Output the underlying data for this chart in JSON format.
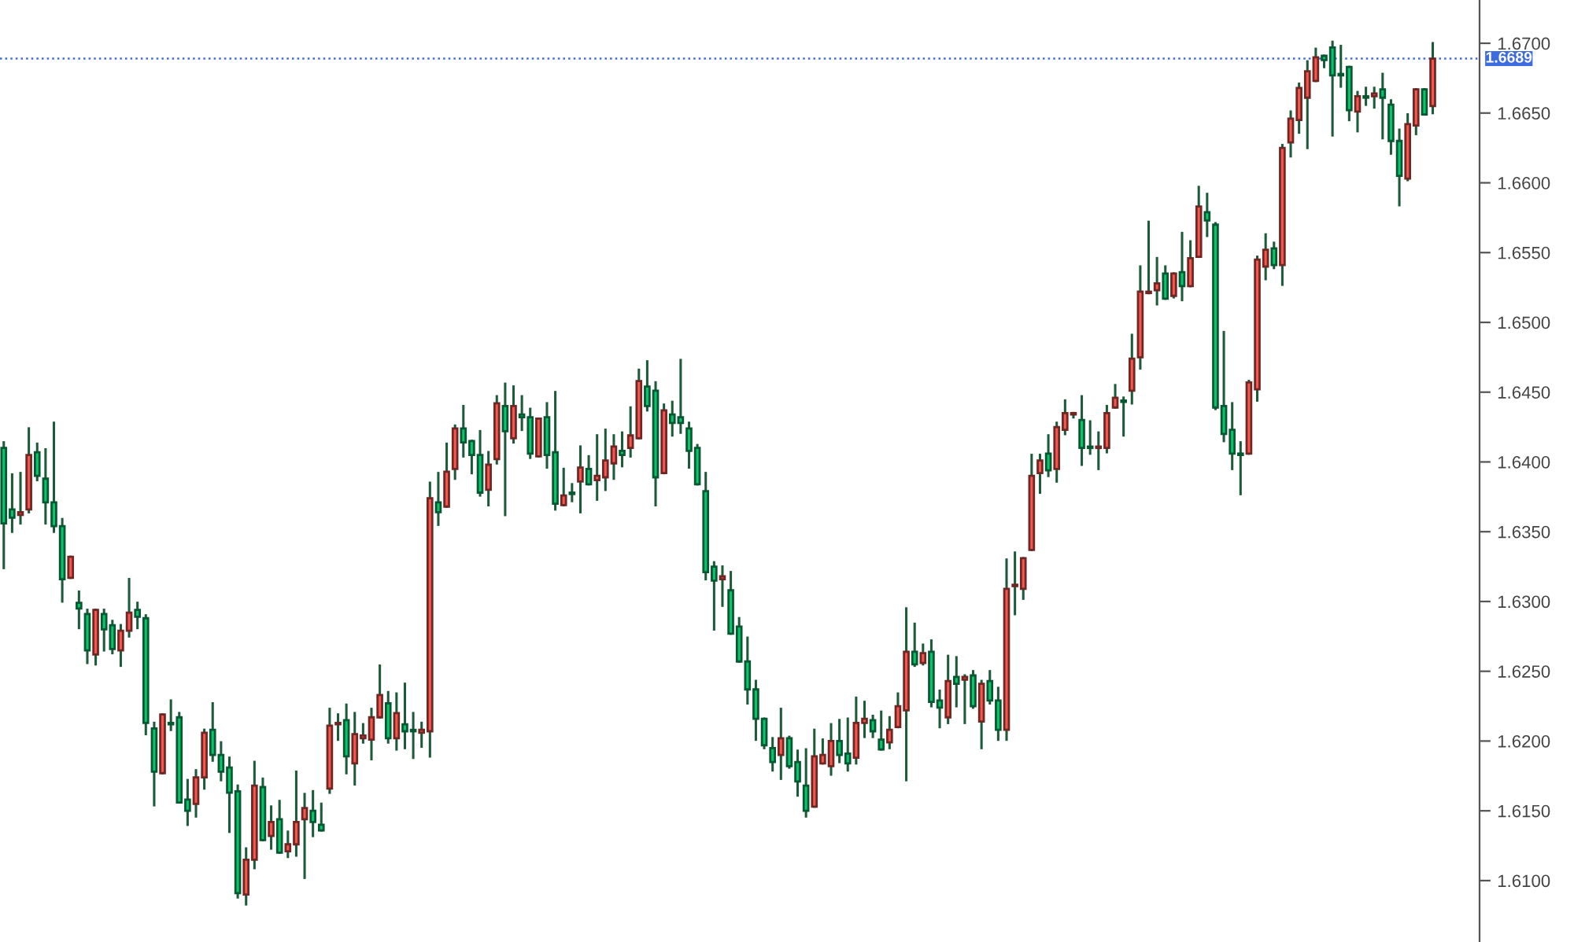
{
  "chart_data": {
    "type": "candlestick",
    "categories": [
      null,
      null,
      null,
      null,
      null,
      null,
      null,
      null,
      null,
      null,
      null,
      null,
      null,
      null,
      null,
      null,
      null,
      null,
      null,
      null,
      null,
      null,
      null,
      null,
      null,
      null,
      null,
      null,
      null,
      null,
      null,
      null,
      null,
      null,
      null,
      null,
      null,
      null,
      null,
      null,
      null,
      null,
      null,
      null,
      null,
      null,
      null,
      null,
      null,
      null,
      null,
      null,
      null,
      null,
      null,
      null,
      null,
      null,
      null,
      null,
      null,
      null,
      null,
      null,
      null,
      null,
      null,
      null,
      null,
      null,
      null,
      null,
      null,
      null,
      null,
      null,
      null,
      null,
      null,
      null,
      null,
      null,
      null,
      null,
      null,
      null,
      null,
      null,
      null,
      null,
      null,
      null,
      null,
      null,
      null,
      null,
      null,
      null,
      null,
      null,
      null,
      null,
      null,
      null,
      null,
      null,
      null,
      null,
      null,
      null,
      null,
      null,
      null,
      null,
      null,
      null,
      null,
      null,
      null,
      null,
      null,
      null,
      null,
      null,
      null,
      null,
      null,
      null,
      null,
      null,
      null,
      null,
      null,
      null,
      null,
      null,
      null,
      null,
      null,
      null,
      null,
      null,
      null,
      null,
      null,
      null,
      null,
      null,
      null,
      null,
      null,
      null,
      null,
      null,
      null,
      null,
      null,
      null,
      null,
      null,
      null,
      null,
      null,
      null,
      null,
      null,
      null,
      null,
      null,
      null,
      null,
      null
    ],
    "ohlc": [
      [
        1.641,
        1.6414,
        1.6324,
        1.6356
      ],
      [
        1.6366,
        1.6391,
        1.635,
        1.636
      ],
      [
        1.6362,
        1.6392,
        1.6356,
        1.6364
      ],
      [
        1.6366,
        1.6424,
        1.6364,
        1.6405
      ],
      [
        1.6407,
        1.6413,
        1.6387,
        1.639
      ],
      [
        1.6388,
        1.6409,
        1.6356,
        1.6371
      ],
      [
        1.6371,
        1.6428,
        1.635,
        1.6354
      ],
      [
        1.6354,
        1.6359,
        1.63,
        1.6316
      ],
      [
        1.6317,
        1.6332,
        1.6317,
        1.6332
      ],
      [
        1.6299,
        1.6307,
        1.6281,
        1.6295
      ],
      [
        1.6291,
        1.6294,
        1.6256,
        1.6265
      ],
      [
        1.6262,
        1.6294,
        1.6255,
        1.6294
      ],
      [
        1.6291,
        1.6294,
        1.6265,
        1.628
      ],
      [
        1.6283,
        1.6286,
        1.6263,
        1.6266
      ],
      [
        1.6265,
        1.6283,
        1.6254,
        1.6279
      ],
      [
        1.6279,
        1.6316,
        1.6275,
        1.6292
      ],
      [
        1.6294,
        1.6299,
        1.6281,
        1.6289
      ],
      [
        1.6288,
        1.629,
        1.6205,
        1.6213
      ],
      [
        1.6209,
        1.6213,
        1.6154,
        1.6178
      ],
      [
        1.6177,
        1.6219,
        1.6177,
        1.6219
      ],
      [
        1.6213,
        1.6229,
        1.6208,
        1.6212
      ],
      [
        1.6217,
        1.622,
        1.6156,
        1.6156
      ],
      [
        1.6158,
        1.6172,
        1.614,
        1.615
      ],
      [
        1.6155,
        1.6179,
        1.6146,
        1.6174
      ],
      [
        1.6174,
        1.6208,
        1.6166,
        1.6206
      ],
      [
        1.6208,
        1.6227,
        1.6186,
        1.619
      ],
      [
        1.619,
        1.6199,
        1.6172,
        1.6178
      ],
      [
        1.6181,
        1.6188,
        1.6135,
        1.6163
      ],
      [
        1.6164,
        1.6168,
        1.6088,
        1.6091
      ],
      [
        1.609,
        1.6123,
        1.6083,
        1.6115
      ],
      [
        1.6115,
        1.6185,
        1.6109,
        1.6168
      ],
      [
        1.6167,
        1.6173,
        1.6129,
        1.6129
      ],
      [
        1.6132,
        1.6153,
        1.6123,
        1.6142
      ],
      [
        1.6144,
        1.6157,
        1.612,
        1.612
      ],
      [
        1.6121,
        1.6135,
        1.6117,
        1.6126
      ],
      [
        1.6126,
        1.6178,
        1.6118,
        1.6142
      ],
      [
        1.6144,
        1.6162,
        1.6102,
        1.6152
      ],
      [
        1.615,
        1.6164,
        1.6132,
        1.6142
      ],
      [
        1.614,
        1.6155,
        1.6136,
        1.6136
      ],
      [
        1.6166,
        1.6223,
        1.6163,
        1.6211
      ],
      [
        1.6212,
        1.6219,
        1.6201,
        1.6213
      ],
      [
        1.6215,
        1.6226,
        1.6177,
        1.6189
      ],
      [
        1.6184,
        1.622,
        1.6169,
        1.6205
      ],
      [
        1.6202,
        1.6212,
        1.6199,
        1.6204
      ],
      [
        1.6201,
        1.6223,
        1.6187,
        1.6217
      ],
      [
        1.6217,
        1.6254,
        1.6217,
        1.6233
      ],
      [
        1.6227,
        1.6235,
        1.6199,
        1.6202
      ],
      [
        1.6202,
        1.6234,
        1.6194,
        1.622
      ],
      [
        1.6212,
        1.6241,
        1.6195,
        1.6207
      ],
      [
        1.6208,
        1.622,
        1.6188,
        1.6207
      ],
      [
        1.6206,
        1.6213,
        1.6196,
        1.6208
      ],
      [
        1.6207,
        1.6385,
        1.6189,
        1.6374
      ],
      [
        1.6371,
        1.6392,
        1.6355,
        1.6364
      ],
      [
        1.6368,
        1.6413,
        1.6368,
        1.6393
      ],
      [
        1.6395,
        1.6426,
        1.6388,
        1.6424
      ],
      [
        1.6424,
        1.644,
        1.6404,
        1.6414
      ],
      [
        1.6415,
        1.6415,
        1.6392,
        1.6405
      ],
      [
        1.6405,
        1.6422,
        1.6376,
        1.6378
      ],
      [
        1.638,
        1.6407,
        1.6369,
        1.6398
      ],
      [
        1.6402,
        1.6447,
        1.6399,
        1.6442
      ],
      [
        1.644,
        1.6456,
        1.6362,
        1.6422
      ],
      [
        1.6417,
        1.6454,
        1.6414,
        1.644
      ],
      [
        1.6434,
        1.6447,
        1.6423,
        1.6432
      ],
      [
        1.6432,
        1.6438,
        1.6403,
        1.6406
      ],
      [
        1.6404,
        1.6431,
        1.6404,
        1.6431
      ],
      [
        1.6432,
        1.6442,
        1.6396,
        1.6405
      ],
      [
        1.6407,
        1.645,
        1.6366,
        1.637
      ],
      [
        1.6369,
        1.6395,
        1.6369,
        1.6376
      ],
      [
        1.6378,
        1.6384,
        1.6372,
        1.6377
      ],
      [
        1.6386,
        1.6411,
        1.6364,
        1.6396
      ],
      [
        1.6395,
        1.6404,
        1.6384,
        1.6384
      ],
      [
        1.6387,
        1.6419,
        1.6373,
        1.639
      ],
      [
        1.6389,
        1.6423,
        1.638,
        1.6401
      ],
      [
        1.6399,
        1.6419,
        1.6388,
        1.6411
      ],
      [
        1.6408,
        1.6421,
        1.6397,
        1.6405
      ],
      [
        1.641,
        1.6439,
        1.6404,
        1.6419
      ],
      [
        1.6417,
        1.6466,
        1.6417,
        1.6458
      ],
      [
        1.6454,
        1.6472,
        1.6437,
        1.644
      ],
      [
        1.6451,
        1.6457,
        1.6369,
        1.6389
      ],
      [
        1.6392,
        1.6441,
        1.6392,
        1.6437
      ],
      [
        1.6434,
        1.6443,
        1.6419,
        1.6428
      ],
      [
        1.6432,
        1.6473,
        1.6421,
        1.6428
      ],
      [
        1.6424,
        1.6428,
        1.6396,
        1.6408
      ],
      [
        1.641,
        1.6412,
        1.6384,
        1.6384
      ],
      [
        1.6379,
        1.6392,
        1.6316,
        1.6321
      ],
      [
        1.6325,
        1.6328,
        1.628,
        1.6315
      ],
      [
        1.6316,
        1.6325,
        1.6297,
        1.6318
      ],
      [
        1.6308,
        1.6321,
        1.6277,
        1.6277
      ],
      [
        1.6282,
        1.6288,
        1.6257,
        1.6257
      ],
      [
        1.6257,
        1.6274,
        1.6227,
        1.6237
      ],
      [
        1.6237,
        1.6243,
        1.6201,
        1.6216
      ],
      [
        1.6216,
        1.6216,
        1.6195,
        1.6197
      ],
      [
        1.6195,
        1.6202,
        1.6179,
        1.6185
      ],
      [
        1.619,
        1.6223,
        1.6173,
        1.6202
      ],
      [
        1.6202,
        1.6203,
        1.6181,
        1.6182
      ],
      [
        1.6185,
        1.6193,
        1.6161,
        1.6171
      ],
      [
        1.6168,
        1.6194,
        1.6146,
        1.615
      ],
      [
        1.6153,
        1.6208,
        1.6153,
        1.6189
      ],
      [
        1.6184,
        1.6201,
        1.6184,
        1.619
      ],
      [
        1.6182,
        1.6212,
        1.6176,
        1.62
      ],
      [
        1.62,
        1.6215,
        1.6185,
        1.619
      ],
      [
        1.6191,
        1.6216,
        1.6179,
        1.6184
      ],
      [
        1.6188,
        1.6231,
        1.6184,
        1.6213
      ],
      [
        1.6213,
        1.6228,
        1.6203,
        1.6216
      ],
      [
        1.6215,
        1.6218,
        1.6203,
        1.6207
      ],
      [
        1.6201,
        1.6221,
        1.6194,
        1.6194
      ],
      [
        1.6199,
        1.6217,
        1.6195,
        1.6208
      ],
      [
        1.621,
        1.6234,
        1.621,
        1.6225
      ],
      [
        1.6222,
        1.6295,
        1.6172,
        1.6264
      ],
      [
        1.6264,
        1.6284,
        1.6254,
        1.6255
      ],
      [
        1.6256,
        1.6269,
        1.6255,
        1.6263
      ],
      [
        1.6264,
        1.6272,
        1.6225,
        1.6228
      ],
      [
        1.6229,
        1.6236,
        1.621,
        1.6224
      ],
      [
        1.6217,
        1.6261,
        1.6213,
        1.6243
      ],
      [
        1.6246,
        1.626,
        1.6225,
        1.6241
      ],
      [
        1.6244,
        1.6247,
        1.6213,
        1.6246
      ],
      [
        1.6247,
        1.625,
        1.6224,
        1.6225
      ],
      [
        1.6214,
        1.6243,
        1.6195,
        1.6241
      ],
      [
        1.6243,
        1.625,
        1.6227,
        1.6229
      ],
      [
        1.6229,
        1.6238,
        1.6201,
        1.6208
      ],
      [
        1.6208,
        1.633,
        1.6201,
        1.6309
      ],
      [
        1.6311,
        1.6335,
        1.6291,
        1.6312
      ],
      [
        1.6309,
        1.6331,
        1.6302,
        1.6331
      ],
      [
        1.6337,
        1.6405,
        1.6337,
        1.639
      ],
      [
        1.6392,
        1.6405,
        1.6378,
        1.6401
      ],
      [
        1.6406,
        1.6419,
        1.639,
        1.6394
      ],
      [
        1.6395,
        1.6428,
        1.6386,
        1.6425
      ],
      [
        1.6423,
        1.6444,
        1.642,
        1.6435
      ],
      [
        1.6434,
        1.6435,
        1.6432,
        1.6435
      ],
      [
        1.643,
        1.6447,
        1.6398,
        1.641
      ],
      [
        1.6411,
        1.6429,
        1.6406,
        1.641
      ],
      [
        1.641,
        1.6421,
        1.6395,
        1.6411
      ],
      [
        1.641,
        1.644,
        1.6407,
        1.6435
      ],
      [
        1.6439,
        1.6455,
        1.6439,
        1.6446
      ],
      [
        1.6444,
        1.6446,
        1.6419,
        1.6443
      ],
      [
        1.6451,
        1.6491,
        1.6442,
        1.6474
      ],
      [
        1.6475,
        1.654,
        1.6467,
        1.6522
      ],
      [
        1.6521,
        1.6572,
        1.6521,
        1.6522
      ],
      [
        1.6523,
        1.6546,
        1.6513,
        1.6528
      ],
      [
        1.6535,
        1.654,
        1.6517,
        1.6517
      ],
      [
        1.6519,
        1.6535,
        1.6518,
        1.6535
      ],
      [
        1.6536,
        1.6564,
        1.6516,
        1.6526
      ],
      [
        1.6526,
        1.6558,
        1.6526,
        1.6546
      ],
      [
        1.6547,
        1.6597,
        1.6547,
        1.6583
      ],
      [
        1.6579,
        1.6592,
        1.6562,
        1.6573
      ],
      [
        1.657,
        1.6571,
        1.6438,
        1.6439
      ],
      [
        1.644,
        1.6493,
        1.6415,
        1.642
      ],
      [
        1.6423,
        1.6442,
        1.6395,
        1.6406
      ],
      [
        1.6406,
        1.6414,
        1.6377,
        1.6405
      ],
      [
        1.6406,
        1.6458,
        1.6406,
        1.6457
      ],
      [
        1.6452,
        1.6547,
        1.6444,
        1.6545
      ],
      [
        1.654,
        1.6563,
        1.6531,
        1.6552
      ],
      [
        1.6553,
        1.6557,
        1.6539,
        1.6541
      ],
      [
        1.6541,
        1.6627,
        1.6527,
        1.6625
      ],
      [
        1.6629,
        1.6651,
        1.6619,
        1.6646
      ],
      [
        1.6645,
        1.6671,
        1.6636,
        1.6668
      ],
      [
        1.6661,
        1.6687,
        1.6625,
        1.668
      ],
      [
        1.6673,
        1.6696,
        1.6673,
        1.669
      ],
      [
        1.6691,
        1.6691,
        1.6683,
        1.6688
      ],
      [
        1.6697,
        1.6701,
        1.6634,
        1.6677
      ],
      [
        1.6678,
        1.6698,
        1.6669,
        1.6677
      ],
      [
        1.6683,
        1.6683,
        1.6645,
        1.6652
      ],
      [
        1.6651,
        1.6665,
        1.6637,
        1.6662
      ],
      [
        1.6662,
        1.6668,
        1.6656,
        1.6661
      ],
      [
        1.6662,
        1.6668,
        1.6654,
        1.6664
      ],
      [
        1.6667,
        1.6678,
        1.6632,
        1.6661
      ],
      [
        1.6656,
        1.6659,
        1.6621,
        1.663
      ],
      [
        1.663,
        1.6638,
        1.6584,
        1.6605
      ],
      [
        1.6603,
        1.6649,
        1.6602,
        1.6642
      ],
      [
        1.6641,
        1.6667,
        1.6635,
        1.6667
      ],
      [
        1.6667,
        1.6667,
        1.6649,
        1.6649
      ],
      [
        1.6655,
        1.67,
        1.665,
        1.6689
      ]
    ],
    "colors": [
      "#0bc46c",
      "#0bc46c",
      "#f6574f",
      "#f6574f",
      "#0bc46c",
      "#0bc46c",
      "#0bc46c",
      "#0bc46c",
      "#f6574f",
      "#0bc46c",
      "#0bc46c",
      "#f6574f",
      "#0bc46c",
      "#0bc46c",
      "#f6574f",
      "#f6574f",
      "#0bc46c",
      "#0bc46c",
      "#0bc46c",
      "#f6574f",
      "#0bc46c",
      "#0bc46c",
      "#0bc46c",
      "#f6574f",
      "#f6574f",
      "#0bc46c",
      "#0bc46c",
      "#0bc46c",
      "#0bc46c",
      "#f6574f",
      "#f6574f",
      "#0bc46c",
      "#f6574f",
      "#0bc46c",
      "#f6574f",
      "#f6574f",
      "#f6574f",
      "#0bc46c",
      "#0bc46c",
      "#f6574f",
      "#f6574f",
      "#0bc46c",
      "#f6574f",
      "#f6574f",
      "#f6574f",
      "#f6574f",
      "#0bc46c",
      "#f6574f",
      "#0bc46c",
      "#0bc46c",
      "#f6574f",
      "#f6574f",
      "#0bc46c",
      "#f6574f",
      "#f6574f",
      "#0bc46c",
      "#0bc46c",
      "#0bc46c",
      "#f6574f",
      "#f6574f",
      "#0bc46c",
      "#f6574f",
      "#0bc46c",
      "#0bc46c",
      "#f6574f",
      "#0bc46c",
      "#0bc46c",
      "#f6574f",
      "#0bc46c",
      "#f6574f",
      "#0bc46c",
      "#f6574f",
      "#f6574f",
      "#f6574f",
      "#0bc46c",
      "#f6574f",
      "#f6574f",
      "#0bc46c",
      "#0bc46c",
      "#f6574f",
      "#0bc46c",
      "#0bc46c",
      "#0bc46c",
      "#0bc46c",
      "#0bc46c",
      "#0bc46c",
      "#f6574f",
      "#0bc46c",
      "#0bc46c",
      "#0bc46c",
      "#0bc46c",
      "#0bc46c",
      "#0bc46c",
      "#f6574f",
      "#0bc46c",
      "#0bc46c",
      "#0bc46c",
      "#f6574f",
      "#f6574f",
      "#f6574f",
      "#0bc46c",
      "#0bc46c",
      "#f6574f",
      "#f6574f",
      "#0bc46c",
      "#0bc46c",
      "#f6574f",
      "#f6574f",
      "#f6574f",
      "#0bc46c",
      "#f6574f",
      "#0bc46c",
      "#0bc46c",
      "#f6574f",
      "#0bc46c",
      "#f6574f",
      "#0bc46c",
      "#f6574f",
      "#0bc46c",
      "#0bc46c",
      "#f6574f",
      "#f6574f",
      "#f6574f",
      "#f6574f",
      "#f6574f",
      "#0bc46c",
      "#f6574f",
      "#f6574f",
      "#f6574f",
      "#0bc46c",
      "#0bc46c",
      "#f6574f",
      "#f6574f",
      "#f6574f",
      "#0bc46c",
      "#f6574f",
      "#f6574f",
      "#f6574f",
      "#f6574f",
      "#0bc46c",
      "#f6574f",
      "#0bc46c",
      "#f6574f",
      "#f6574f",
      "#0bc46c",
      "#0bc46c",
      "#0bc46c",
      "#0bc46c",
      "#0bc46c",
      "#f6574f",
      "#f6574f",
      "#f6574f",
      "#0bc46c",
      "#f6574f",
      "#f6574f",
      "#f6574f",
      "#f6574f",
      "#f6574f",
      "#0bc46c",
      "#0bc46c",
      "#0bc46c",
      "#0bc46c",
      "#f6574f",
      "#0bc46c",
      "#f6574f",
      "#0bc46c",
      "#0bc46c",
      "#0bc46c",
      "#f6574f",
      "#f6574f",
      "#0bc46c",
      "#f6574f"
    ],
    "ylim": [
      1.6056,
      1.6731
    ],
    "yticks": [
      {
        "value": 1.61,
        "label": "1.6100"
      },
      {
        "value": 1.615,
        "label": "1.6150"
      },
      {
        "value": 1.62,
        "label": "1.6200"
      },
      {
        "value": 1.625,
        "label": "1.6250"
      },
      {
        "value": 1.63,
        "label": "1.6300"
      },
      {
        "value": 1.635,
        "label": "1.6350"
      },
      {
        "value": 1.64,
        "label": "1.6400"
      },
      {
        "value": 1.645,
        "label": "1.6450"
      },
      {
        "value": 1.65,
        "label": "1.6500"
      },
      {
        "value": 1.655,
        "label": "1.6550"
      },
      {
        "value": 1.66,
        "label": "1.6600"
      },
      {
        "value": 1.665,
        "label": "1.6650"
      },
      {
        "value": 1.67,
        "label": "1.6700"
      }
    ],
    "ref_lines": [
      {
        "axis": "y",
        "value": 1.6689,
        "label": "1.6689",
        "color": "#3d6be0",
        "line_style": "dotted"
      }
    ],
    "grid": false
  }
}
